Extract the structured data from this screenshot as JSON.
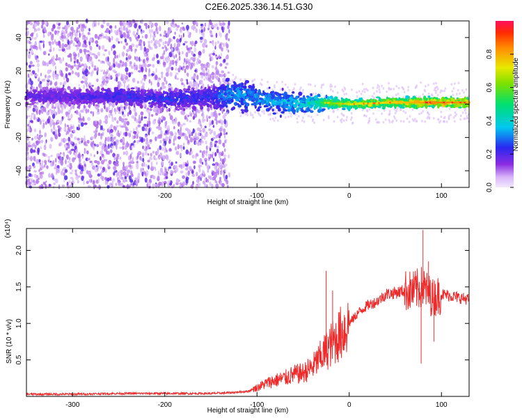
{
  "title": "C2E6.2025.336.14.51.G30",
  "colors": {
    "snr_line": "#ee2a2a",
    "spec_core_low": "#6a1fe0",
    "spec_core_mid": "#14e0d4",
    "spec_core_high": "#ff2a3a",
    "spec_noise": "#d7bdf5"
  },
  "chart_data": [
    {
      "type": "heatmap",
      "name": "spectrogram",
      "xlabel": "Height of straight line (km)",
      "ylabel": "Frequency (Hz)",
      "xlim": [
        -350,
        130
      ],
      "ylim": [
        -50,
        50
      ],
      "x_ticks": [
        -300,
        -200,
        -100,
        0,
        100
      ],
      "y_ticks": [
        -40,
        -20,
        0,
        20,
        40
      ],
      "grid": false,
      "colorbar": {
        "label": "Normalized spectral amplitude",
        "range": [
          0,
          1
        ],
        "ticks": [
          "0.0",
          "0.2",
          "0.4",
          "0.6",
          "0.8"
        ],
        "colormap": "rainbow"
      },
      "signal_band": {
        "x": [
          -350,
          -300,
          -250,
          -200,
          -150,
          -130,
          -100,
          -50,
          -30,
          0,
          50,
          100,
          130
        ],
        "center_hz": [
          5,
          4,
          5,
          3,
          4,
          6,
          3,
          0,
          1,
          0,
          1,
          1,
          1
        ],
        "halfwidth_hz": [
          5,
          5,
          5,
          5,
          6,
          9,
          8,
          6,
          4,
          3,
          3,
          3,
          3
        ],
        "amplitude": [
          0.2,
          0.2,
          0.25,
          0.25,
          0.25,
          0.35,
          0.35,
          0.4,
          0.55,
          0.7,
          0.75,
          0.85,
          0.8
        ]
      },
      "noise_region_x": [
        -350,
        -130
      ]
    },
    {
      "type": "line",
      "name": "snr",
      "xlabel": "Height of straight line (km)",
      "ylabel": "SNR (10 * v/v)",
      "scale_label": "(x10⁴)",
      "xlim": [
        -350,
        130
      ],
      "ylim": [
        0,
        2.3
      ],
      "x_ticks": [
        -300,
        -200,
        -100,
        0,
        100
      ],
      "y_ticks": [
        "0.5",
        "1.0",
        "1.5",
        "2.0"
      ],
      "grid": false,
      "series": [
        {
          "x": [
            -350,
            -300,
            -250,
            -200,
            -150,
            -130,
            -110,
            -100,
            -90,
            -80,
            -70,
            -60,
            -50,
            -40,
            -30,
            -20,
            -10,
            0,
            10,
            20,
            30,
            40,
            50,
            60,
            70,
            80,
            90,
            100,
            110,
            120,
            130
          ],
          "y": [
            0.03,
            0.03,
            0.04,
            0.04,
            0.04,
            0.05,
            0.07,
            0.12,
            0.18,
            0.22,
            0.25,
            0.3,
            0.32,
            0.4,
            0.55,
            0.7,
            0.85,
            1.0,
            1.15,
            1.25,
            1.3,
            1.4,
            1.42,
            1.45,
            1.44,
            1.5,
            1.35,
            1.4,
            1.38,
            1.35,
            1.33
          ]
        }
      ],
      "spikes": [
        {
          "x": -25,
          "y": 1.72
        },
        {
          "x": -18,
          "y": 1.45
        },
        {
          "x": 80,
          "y": 2.28
        },
        {
          "x": 78,
          "y": 0.45
        },
        {
          "x": 92,
          "y": 0.75
        },
        {
          "x": 86,
          "y": 1.85
        }
      ]
    }
  ]
}
